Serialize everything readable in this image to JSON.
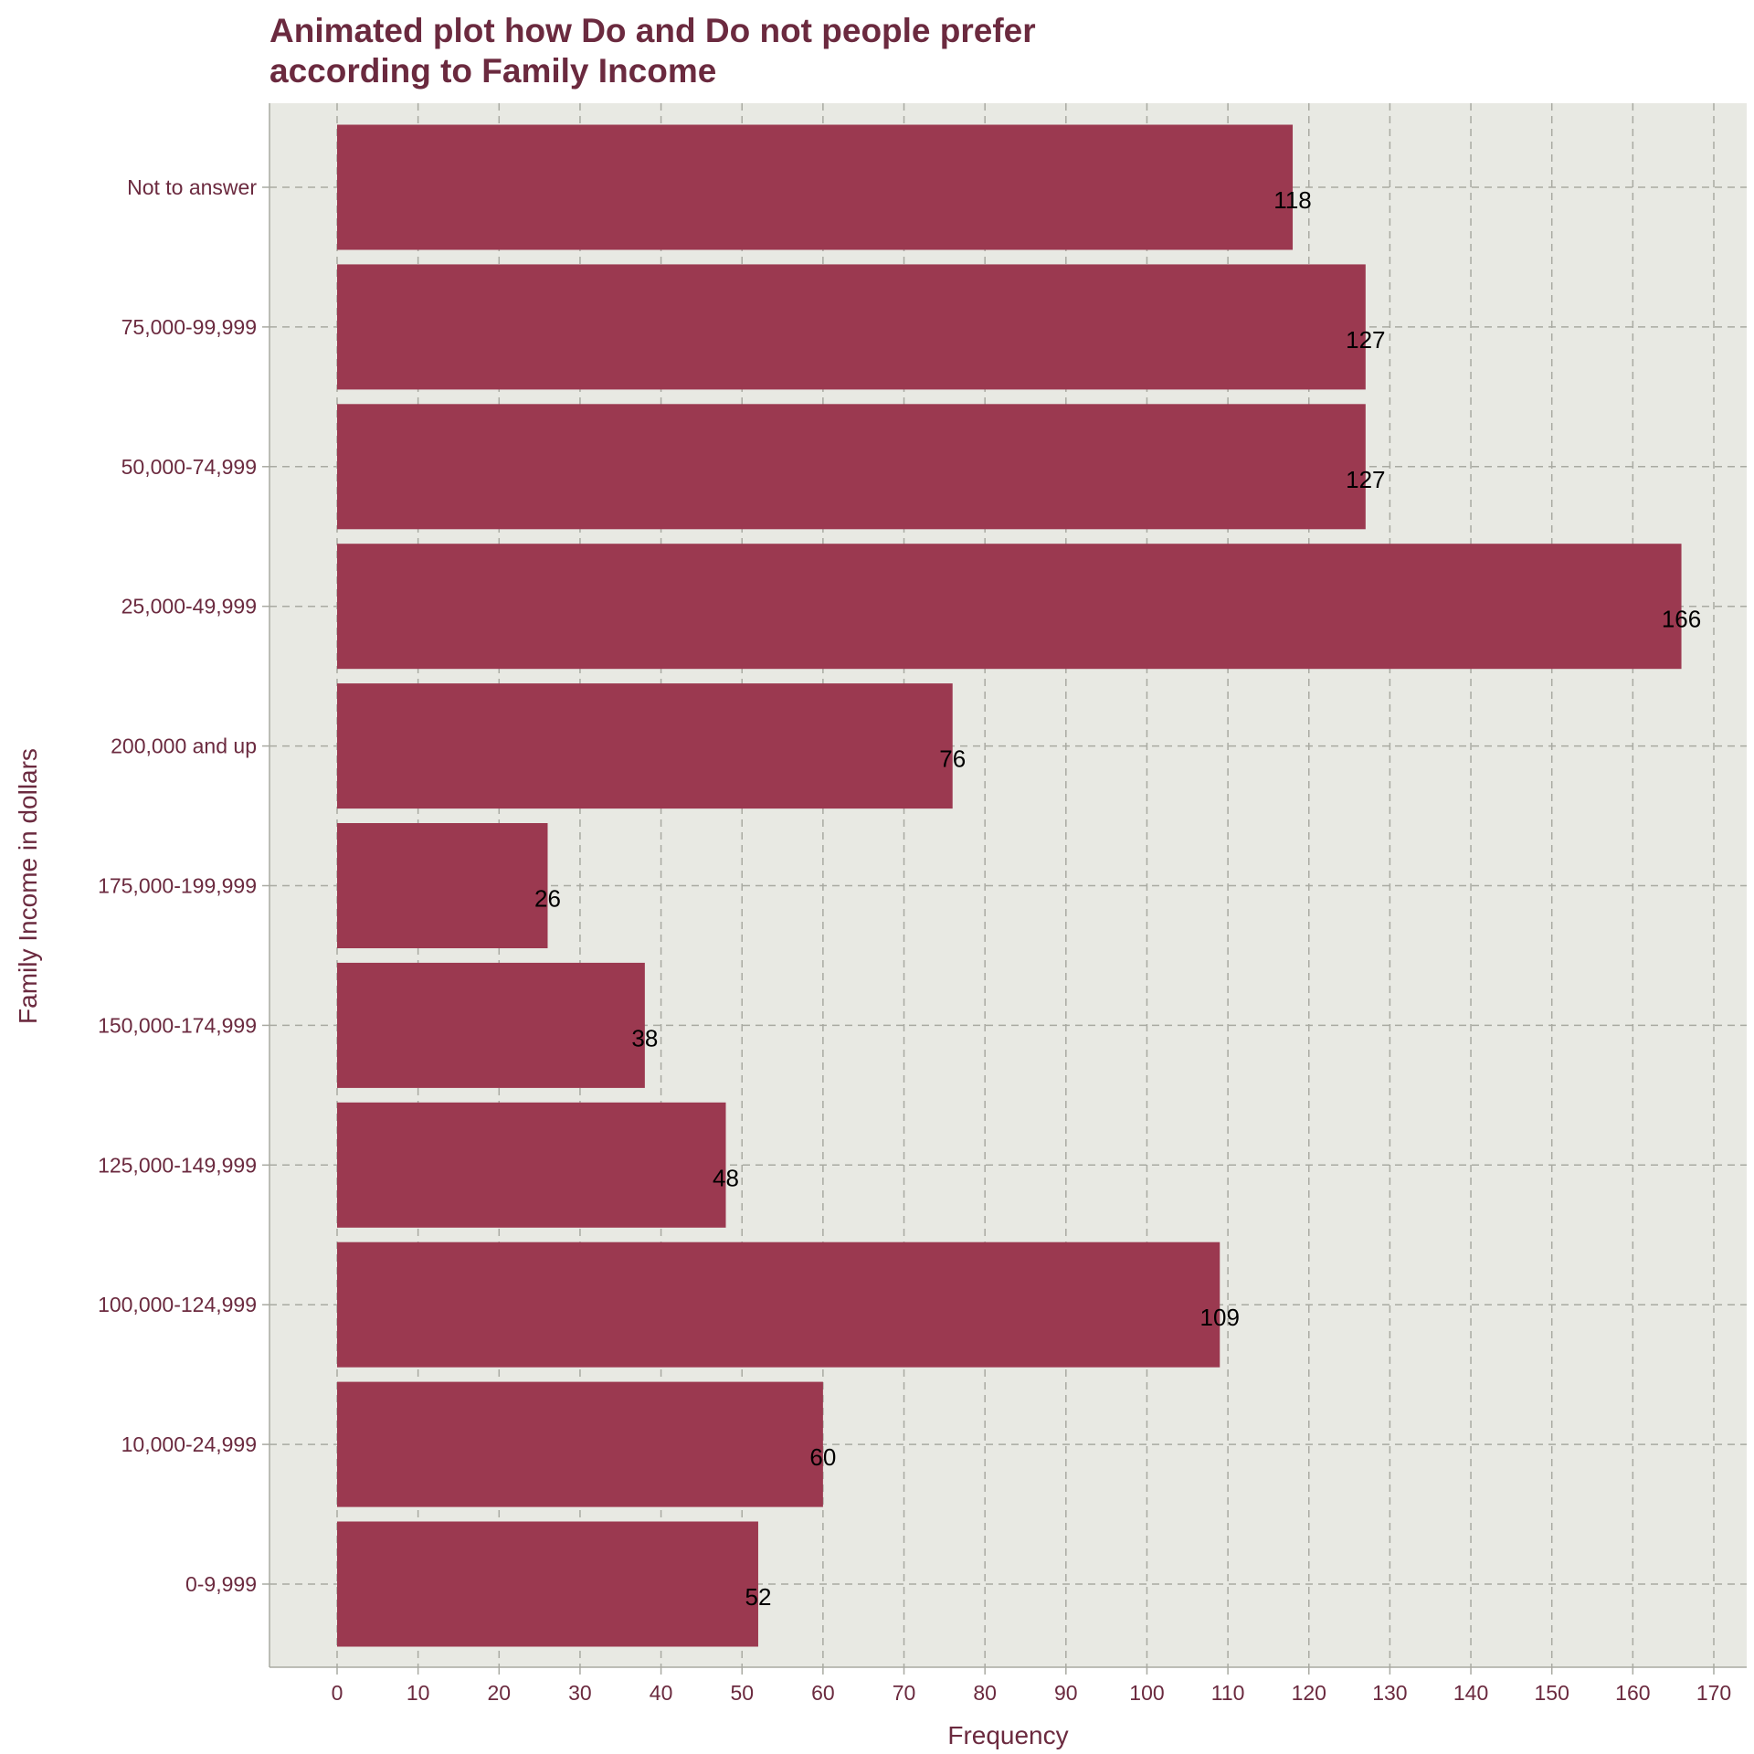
{
  "chart_data": {
    "type": "bar",
    "orientation": "horizontal",
    "title": "Animated plot how Do and Do not people prefer\naccording to Family Income",
    "xlabel": "Frequency",
    "ylabel": "Family Income in dollars",
    "categories": [
      "0-9,999",
      "10,000-24,999",
      "100,000-124,999",
      "125,000-149,999",
      "150,000-174,999",
      "175,000-199,999",
      "200,000 and up",
      "25,000-49,999",
      "50,000-74,999",
      "75,000-99,999",
      "Not to answer"
    ],
    "values": [
      52,
      60,
      109,
      48,
      38,
      26,
      76,
      166,
      127,
      127,
      118
    ],
    "xlim": [
      0,
      170
    ],
    "xticks": [
      0,
      10,
      20,
      30,
      40,
      50,
      60,
      70,
      80,
      90,
      100,
      110,
      120,
      130,
      140,
      150,
      160,
      170
    ],
    "grid": true,
    "grid_style": "dashed",
    "legend": "none",
    "colors": {
      "bar": "#9b3950",
      "panel_background": "#e8e9e3",
      "grid": "#a9aaa2",
      "axis_text": "#6b2a3f",
      "title": "#6b2a3f",
      "data_label": "#000000"
    }
  }
}
